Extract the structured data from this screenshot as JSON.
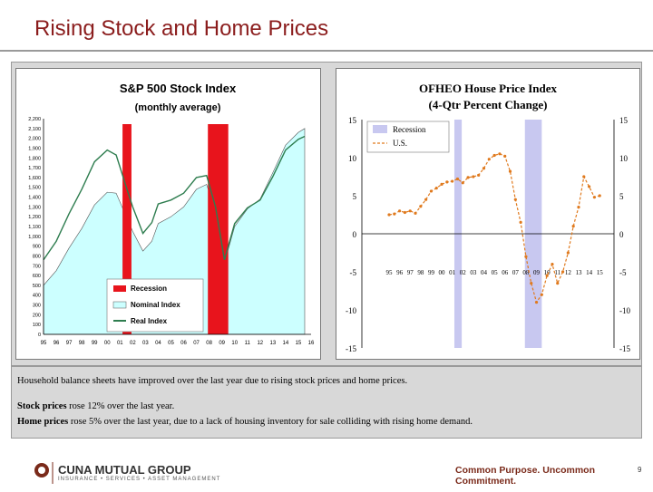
{
  "slide": {
    "title": "Rising Stock and Home Prices",
    "page_number": "9"
  },
  "caption": {
    "line1": "Household balance sheets have improved over the last year due to rising stock prices and home prices.",
    "line2_bold": "Stock prices",
    "line2_rest": " rose 12% over the last year.",
    "line3_bold": "Home prices",
    "line3_rest": " rose 5% over the last year, due to a lack of housing inventory for sale colliding with rising home demand."
  },
  "footer": {
    "company": "CUNA MUTUAL GROUP",
    "company_sub": "INSURANCE • SERVICES • ASSET MANAGEMENT",
    "tagline": "Common Purpose. Uncommon Commitment."
  },
  "colors": {
    "title": "#8b1d1d",
    "recession_red": "#e8141c",
    "nominal_fill": "#ccffff",
    "real_line": "#2e7d4f",
    "recession_blue": "#c8c8f0",
    "hpi_orange": "#e07a1e"
  },
  "chart_data": [
    {
      "type": "area",
      "title": "S&P 500 Stock Index",
      "subtitle": "(monthly average)",
      "x_ticks": [
        "95",
        "96",
        "97",
        "98",
        "99",
        "00",
        "01",
        "02",
        "03",
        "04",
        "05",
        "06",
        "07",
        "08",
        "09",
        "10",
        "11",
        "12",
        "13",
        "14",
        "15",
        "16"
      ],
      "y_ticks": [
        "0",
        "100",
        "200",
        "300",
        "400",
        "500",
        "600",
        "700",
        "800",
        "900",
        "1,000",
        "1,100",
        "1,200",
        "1,300",
        "1,400",
        "1,500",
        "1,600",
        "1,700",
        "1,800",
        "1,900",
        "2,000",
        "2,100",
        "2,200"
      ],
      "ylim": [
        0,
        2200
      ],
      "xlim": [
        1995,
        2016
      ],
      "legend": [
        "Recession",
        "Nominal Index",
        "Real Index"
      ],
      "legend_position": "bottom-center",
      "recessions": [
        [
          2001.2,
          2001.9
        ],
        [
          2007.9,
          2009.5
        ]
      ],
      "series": [
        {
          "name": "Nominal Index",
          "x": [
            1995,
            1996,
            1997,
            1998,
            1999,
            2000,
            2000.7,
            2001.5,
            2002,
            2002.8,
            2003.5,
            2004,
            2005,
            2006,
            2007,
            2007.8,
            2008.5,
            2009.2,
            2010,
            2011,
            2012,
            2013,
            2014,
            2015,
            2015.5
          ],
          "values": [
            500,
            650,
            880,
            1080,
            1320,
            1450,
            1440,
            1200,
            1050,
            850,
            950,
            1130,
            1200,
            1300,
            1480,
            1530,
            1250,
            730,
            1100,
            1280,
            1380,
            1650,
            1930,
            2060,
            2100
          ]
        },
        {
          "name": "Real Index",
          "x": [
            1995,
            1996,
            1997,
            1998,
            1999,
            2000,
            2000.7,
            2001.5,
            2002,
            2002.8,
            2003.5,
            2004,
            2005,
            2006,
            2007,
            2007.8,
            2008.5,
            2009.2,
            2010,
            2011,
            2012,
            2013,
            2014,
            2015,
            2015.5
          ],
          "values": [
            760,
            950,
            1230,
            1480,
            1760,
            1880,
            1830,
            1500,
            1300,
            1030,
            1140,
            1330,
            1370,
            1440,
            1600,
            1620,
            1300,
            760,
            1130,
            1290,
            1370,
            1610,
            1880,
            1990,
            2020
          ]
        }
      ]
    },
    {
      "type": "line",
      "title": "OFHEO House Price Index",
      "subtitle": "(4-Qtr Percent Change)",
      "x_ticks": [
        "95",
        "96",
        "97",
        "98",
        "99",
        "00",
        "01",
        "02",
        "03",
        "04",
        "05",
        "06",
        "07",
        "08",
        "09",
        "10",
        "11",
        "12",
        "13",
        "14",
        "15"
      ],
      "y_ticks": [
        "15",
        "10",
        "5",
        "0",
        "-5",
        "-10",
        "-15"
      ],
      "ylim": [
        -15,
        15
      ],
      "xlim": [
        1995,
        2015.5
      ],
      "legend": [
        "Recession",
        "U.S."
      ],
      "legend_position": "top-left",
      "recessions": [
        [
          2001.2,
          2001.9
        ],
        [
          2007.9,
          2009.5
        ]
      ],
      "series": [
        {
          "name": "U.S.",
          "x": [
            1995,
            1995.5,
            1996,
            1996.5,
            1997,
            1997.5,
            1998,
            1998.5,
            1999,
            1999.5,
            2000,
            2000.5,
            2001,
            2001.5,
            2002,
            2002.5,
            2003,
            2003.5,
            2004,
            2004.5,
            2005,
            2005.5,
            2006,
            2006.5,
            2007,
            2007.5,
            2008,
            2008.5,
            2009,
            2009.5,
            2010,
            2010.5,
            2011,
            2011.5,
            2012,
            2012.5,
            2013,
            2013.5,
            2014,
            2014.5,
            2015
          ],
          "values": [
            2.5,
            2.6,
            3.0,
            2.8,
            3.0,
            2.7,
            3.6,
            4.5,
            5.6,
            6.0,
            6.5,
            6.8,
            6.9,
            7.2,
            6.7,
            7.4,
            7.5,
            7.7,
            8.6,
            9.8,
            10.3,
            10.5,
            10.2,
            8.2,
            4.5,
            1.5,
            -3.0,
            -6.5,
            -9.0,
            -8.0,
            -5.5,
            -4.0,
            -6.5,
            -5.0,
            -2.5,
            1.0,
            3.5,
            7.5,
            6.2,
            4.8,
            5.0
          ]
        }
      ]
    }
  ]
}
